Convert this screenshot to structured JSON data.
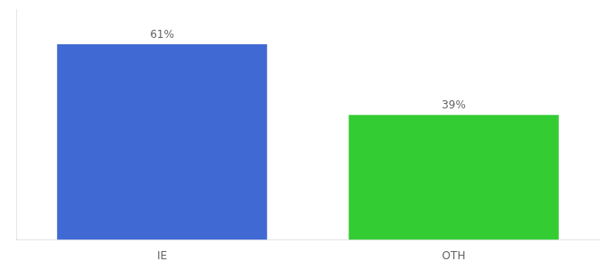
{
  "chart_data": {
    "type": "bar",
    "categories": [
      "IE",
      "OTH"
    ],
    "values": [
      61,
      39
    ],
    "value_labels": [
      "61%",
      "39%"
    ],
    "data_labels": true,
    "colors": [
      "#4169d4",
      "#33cc33"
    ],
    "ylim": [
      0,
      72
    ],
    "tick_labels": "x",
    "grid": false
  }
}
